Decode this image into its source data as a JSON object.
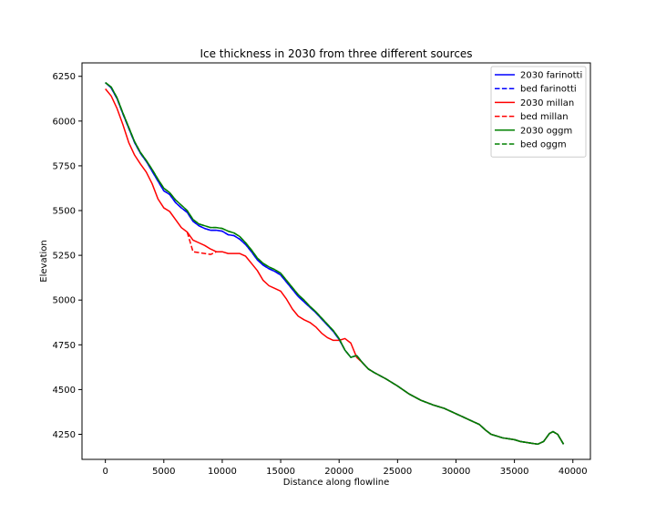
{
  "chart_data": {
    "type": "line",
    "title": "Ice thickness in 2030 from three different sources",
    "xlabel": "Distance along flowline",
    "ylabel": "Elevation",
    "xlim": [
      -2000,
      41500
    ],
    "ylim": [
      4110,
      6325
    ],
    "xticks": [
      0,
      5000,
      10000,
      15000,
      20000,
      25000,
      30000,
      35000,
      40000
    ],
    "yticks": [
      4250,
      4500,
      4750,
      5000,
      5250,
      5500,
      5750,
      6000,
      6250
    ],
    "grid": false,
    "legend_position": "top-right",
    "series": [
      {
        "name": "2030 farinotti",
        "color": "#0000ff",
        "style": "solid",
        "x": [
          0,
          500,
          1000,
          1500,
          2000,
          2500,
          3000,
          3500,
          4000,
          4500,
          5000,
          5500,
          6000,
          6500,
          7000,
          7500,
          8000,
          8500,
          9000,
          9500,
          10000,
          10500,
          11000,
          11500,
          12000,
          12500,
          13000,
          13500,
          14000,
          14500,
          15000,
          15500,
          16000,
          16500,
          17000,
          17500,
          18000,
          18500,
          19000,
          19500,
          20000,
          20500,
          21000,
          21500,
          22000,
          22500,
          23000,
          24000,
          25000,
          26000,
          27000,
          28000,
          29000,
          30000,
          31000,
          31500,
          32000,
          32500,
          33000,
          33500,
          34000,
          34500,
          35000,
          35500,
          36000,
          36500,
          37000,
          37500,
          38000,
          38300,
          38700,
          39200
        ],
        "y": [
          6215,
          6185,
          6125,
          6040,
          5960,
          5880,
          5820,
          5775,
          5720,
          5665,
          5610,
          5590,
          5545,
          5515,
          5490,
          5440,
          5415,
          5400,
          5390,
          5390,
          5385,
          5365,
          5360,
          5340,
          5310,
          5270,
          5225,
          5195,
          5175,
          5160,
          5140,
          5100,
          5060,
          5020,
          4990,
          4960,
          4930,
          4895,
          4860,
          4825,
          4780,
          4720,
          4680,
          4690,
          4650,
          4615,
          4595,
          4560,
          4520,
          4475,
          4440,
          4415,
          4395,
          4365,
          4335,
          4320,
          4305,
          4275,
          4250,
          4240,
          4230,
          4225,
          4220,
          4210,
          4205,
          4200,
          4195,
          4210,
          4255,
          4265,
          4250,
          4195
        ]
      },
      {
        "name": "bed farinotti",
        "color": "#0000ff",
        "style": "dashed",
        "x": [
          0,
          500,
          1000,
          1500,
          2000,
          2500,
          3000,
          3500,
          4000,
          4500,
          5000,
          5500,
          6000,
          6500,
          7000,
          7500,
          8000,
          8500,
          9000,
          9500,
          10000,
          10500,
          11000,
          11500,
          12000,
          12500,
          13000,
          13500,
          14000,
          14500,
          15000,
          15500,
          16000,
          16500,
          17000,
          17500,
          18000,
          18500,
          19000,
          19500,
          20000,
          20500,
          21000,
          21500,
          22000,
          22500,
          23000,
          24000,
          25000,
          26000,
          27000,
          28000,
          29000,
          30000,
          31000,
          31500,
          32000,
          32500,
          33000,
          33500,
          34000,
          34500,
          35000,
          35500,
          36000,
          36500,
          37000,
          37500,
          38000,
          38300,
          38700,
          39200
        ],
        "y": [
          6215,
          6185,
          6125,
          6040,
          5960,
          5880,
          5820,
          5775,
          5720,
          5665,
          5610,
          5590,
          5545,
          5515,
          5490,
          5440,
          5415,
          5400,
          5390,
          5390,
          5385,
          5365,
          5360,
          5340,
          5310,
          5270,
          5225,
          5195,
          5175,
          5160,
          5140,
          5100,
          5060,
          5020,
          4990,
          4960,
          4930,
          4895,
          4860,
          4825,
          4780,
          4720,
          4680,
          4690,
          4650,
          4615,
          4595,
          4560,
          4520,
          4475,
          4440,
          4415,
          4395,
          4365,
          4335,
          4320,
          4305,
          4275,
          4250,
          4240,
          4230,
          4225,
          4220,
          4210,
          4205,
          4200,
          4195,
          4210,
          4255,
          4265,
          4250,
          4195
        ]
      },
      {
        "name": "2030 millan",
        "color": "#ff0000",
        "style": "solid",
        "x": [
          0,
          500,
          1000,
          1500,
          2000,
          2500,
          3000,
          3500,
          4000,
          4500,
          5000,
          5500,
          6000,
          6500,
          7000,
          7500,
          8000,
          8500,
          9000,
          9500,
          10000,
          10500,
          11000,
          11500,
          12000,
          12500,
          13000,
          13500,
          14000,
          14500,
          15000,
          15500,
          16000,
          16500,
          17000,
          17500,
          18000,
          18500,
          19000,
          19500,
          20000,
          20500,
          21000,
          21500,
          22000,
          22500,
          23000,
          24000,
          25000,
          26000,
          27000,
          28000,
          29000,
          30000,
          31000,
          31500,
          32000,
          32500,
          33000,
          33500,
          34000,
          34500,
          35000,
          35500,
          36000,
          36500,
          37000,
          37500,
          38000,
          38300,
          38700,
          39200
        ],
        "y": [
          6180,
          6140,
          6070,
          5980,
          5880,
          5810,
          5760,
          5715,
          5650,
          5565,
          5515,
          5495,
          5450,
          5405,
          5380,
          5335,
          5320,
          5305,
          5285,
          5270,
          5270,
          5260,
          5260,
          5260,
          5245,
          5205,
          5165,
          5110,
          5080,
          5065,
          5050,
          5005,
          4950,
          4910,
          4890,
          4875,
          4850,
          4815,
          4790,
          4775,
          4775,
          4785,
          4760,
          4680,
          4650,
          4615,
          4595,
          4560,
          4520,
          4475,
          4440,
          4415,
          4395,
          4365,
          4335,
          4320,
          4305,
          4275,
          4250,
          4240,
          4230,
          4225,
          4220,
          4210,
          4205,
          4200,
          4195,
          4210,
          4255,
          4265,
          4250,
          4195
        ]
      },
      {
        "name": "bed millan",
        "color": "#ff0000",
        "style": "dashed",
        "x": [
          7000,
          7500,
          8000,
          8500,
          9000,
          9500
        ],
        "y": [
          5380,
          5270,
          5265,
          5260,
          5255,
          5270
        ]
      },
      {
        "name": "2030 oggm",
        "color": "#008000",
        "style": "solid",
        "x": [
          0,
          500,
          1000,
          1500,
          2000,
          2500,
          3000,
          3500,
          4000,
          4500,
          5000,
          5500,
          6000,
          6500,
          7000,
          7500,
          8000,
          8500,
          9000,
          9500,
          10000,
          10500,
          11000,
          11500,
          12000,
          12500,
          13000,
          13500,
          14000,
          14500,
          15000,
          15500,
          16000,
          16500,
          17000,
          17500,
          18000,
          18500,
          19000,
          19500,
          20000,
          20500,
          21000,
          21500,
          22000,
          22500,
          23000,
          24000,
          25000,
          26000,
          27000,
          28000,
          29000,
          30000,
          31000,
          31500,
          32000,
          32500,
          33000,
          33500,
          34000,
          34500,
          35000,
          35500,
          36000,
          36500,
          37000,
          37500,
          38000,
          38300,
          38700,
          39200
        ],
        "y": [
          6215,
          6190,
          6130,
          6045,
          5965,
          5885,
          5825,
          5780,
          5730,
          5675,
          5625,
          5600,
          5560,
          5530,
          5500,
          5450,
          5425,
          5415,
          5405,
          5405,
          5400,
          5385,
          5375,
          5355,
          5320,
          5280,
          5235,
          5205,
          5185,
          5170,
          5150,
          5110,
          5070,
          5030,
          5000,
          4965,
          4935,
          4900,
          4865,
          4830,
          4785,
          4720,
          4680,
          4690,
          4650,
          4615,
          4595,
          4560,
          4520,
          4475,
          4440,
          4415,
          4395,
          4365,
          4335,
          4320,
          4305,
          4275,
          4250,
          4240,
          4230,
          4225,
          4220,
          4210,
          4205,
          4200,
          4195,
          4210,
          4255,
          4265,
          4250,
          4195
        ]
      },
      {
        "name": "bed oggm",
        "color": "#008000",
        "style": "dashed",
        "x": [
          0,
          500,
          1000,
          1500,
          2000,
          2500,
          3000,
          3500,
          4000,
          4500,
          5000,
          5500,
          6000,
          6500,
          7000,
          7500,
          8000,
          8500,
          9000,
          9500,
          10000,
          10500,
          11000,
          11500,
          12000,
          12500,
          13000,
          13500,
          14000,
          14500,
          15000,
          15500,
          16000,
          16500,
          17000,
          17500,
          18000,
          18500,
          19000,
          19500,
          20000,
          20500,
          21000,
          21500,
          22000,
          22500,
          23000,
          24000,
          25000,
          26000,
          27000,
          28000,
          29000,
          30000,
          31000,
          31500,
          32000,
          32500,
          33000,
          33500,
          34000,
          34500,
          35000,
          35500,
          36000,
          36500,
          37000,
          37500,
          38000,
          38300,
          38700,
          39200
        ],
        "y": [
          6215,
          6190,
          6130,
          6045,
          5965,
          5885,
          5825,
          5780,
          5730,
          5675,
          5625,
          5600,
          5560,
          5530,
          5500,
          5450,
          5425,
          5415,
          5405,
          5405,
          5400,
          5385,
          5375,
          5355,
          5320,
          5280,
          5235,
          5205,
          5185,
          5170,
          5150,
          5110,
          5070,
          5030,
          5000,
          4965,
          4935,
          4900,
          4865,
          4830,
          4785,
          4720,
          4680,
          4690,
          4650,
          4615,
          4595,
          4560,
          4520,
          4475,
          4440,
          4415,
          4395,
          4365,
          4335,
          4320,
          4305,
          4275,
          4250,
          4240,
          4230,
          4225,
          4220,
          4210,
          4205,
          4200,
          4195,
          4210,
          4255,
          4265,
          4250,
          4195
        ]
      }
    ]
  }
}
